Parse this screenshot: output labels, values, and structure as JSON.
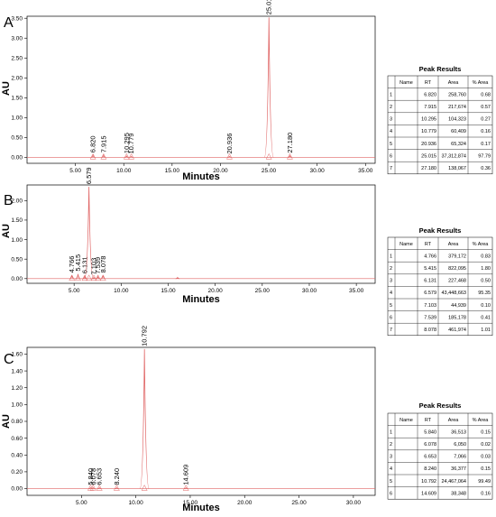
{
  "chart_data": [
    {
      "panel": "A",
      "type": "line",
      "xlabel": "Minutes",
      "ylabel": "AU",
      "xlim": [
        0,
        36
      ],
      "ylim": [
        -0.15,
        3.55
      ],
      "xticks": [
        5.0,
        10.0,
        15.0,
        20.0,
        25.0,
        30.0,
        35.0
      ],
      "xtick_labels": [
        "5.00",
        "10.00",
        "15.00",
        "20.00",
        "25.00",
        "30.00",
        "35.00"
      ],
      "yticks": [
        0.0,
        0.5,
        1.0,
        1.5,
        2.0,
        2.5,
        3.0,
        3.5
      ],
      "ytick_labels": [
        "0.00",
        "0.50",
        "1.00",
        "1.50",
        "2.00",
        "2.50",
        "3.00",
        "3.50"
      ],
      "peaks": [
        {
          "rt": 6.82,
          "label": "6.820",
          "height": 0.05
        },
        {
          "rt": 7.915,
          "label": "7.915",
          "height": 0.05
        },
        {
          "rt": 10.295,
          "label": "10.295",
          "height": 0.03
        },
        {
          "rt": 10.779,
          "label": "10.779",
          "height": 0.02
        },
        {
          "rt": 20.936,
          "label": "20.936",
          "height": 0.02
        },
        {
          "rt": 25.015,
          "label": "25.015",
          "height": 3.52
        },
        {
          "rt": 27.18,
          "label": "27.180",
          "height": 0.04
        }
      ],
      "table": {
        "title": "Peak Results",
        "columns": [
          "",
          "Name",
          "RT",
          "Area",
          "% Area"
        ],
        "rows": [
          [
            "1",
            "",
            "6.820",
            "258,760",
            "0.68"
          ],
          [
            "2",
            "",
            "7.915",
            "217,674",
            "0.57"
          ],
          [
            "3",
            "",
            "10.295",
            "104,323",
            "0.27"
          ],
          [
            "4",
            "",
            "10.779",
            "60,409",
            "0.16"
          ],
          [
            "5",
            "",
            "20.936",
            "65,324",
            "0.17"
          ],
          [
            "6",
            "",
            "25.015",
            "37,312,874",
            "97.79"
          ],
          [
            "7",
            "",
            "27.180",
            "138,067",
            "0.36"
          ]
        ]
      }
    },
    {
      "panel": "B",
      "type": "line",
      "xlabel": "Minutes",
      "ylabel": "AU",
      "xlim": [
        0,
        37
      ],
      "ylim": [
        -0.12,
        2.4
      ],
      "xticks": [
        5.0,
        10.0,
        15.0,
        20.0,
        25.0,
        30.0,
        35.0
      ],
      "xtick_labels": [
        "5.00",
        "10.00",
        "15.00",
        "20.00",
        "25.00",
        "30.00",
        "35.00"
      ],
      "yticks": [
        0.0,
        0.5,
        1.0,
        1.5,
        2.0
      ],
      "ytick_labels": [
        "0.00",
        "0.50",
        "1.00",
        "1.50",
        "2.00"
      ],
      "peaks": [
        {
          "rt": 4.766,
          "label": "4.766",
          "height": 0.08
        },
        {
          "rt": 5.415,
          "label": "5.415",
          "height": 0.12
        },
        {
          "rt": 6.131,
          "label": "6.131",
          "height": 0.06
        },
        {
          "rt": 6.579,
          "label": "6.579",
          "height": 2.35
        },
        {
          "rt": 7.103,
          "label": "7.103",
          "height": 0.03
        },
        {
          "rt": 7.539,
          "label": "7.539",
          "height": 0.05
        },
        {
          "rt": 8.078,
          "label": "8.078",
          "height": 0.08
        },
        {
          "rt": 16.0,
          "label": "",
          "height": 0.03
        }
      ],
      "table": {
        "title": "Peak Results",
        "columns": [
          "",
          "Name",
          "RT",
          "Area",
          "% Area"
        ],
        "rows": [
          [
            "1",
            "",
            "4.766",
            "379,172",
            "0.83"
          ],
          [
            "2",
            "",
            "5.415",
            "822,095",
            "1.80"
          ],
          [
            "3",
            "",
            "6.131",
            "227,468",
            "0.50"
          ],
          [
            "4",
            "",
            "6.579",
            "43,448,663",
            "95.35"
          ],
          [
            "5",
            "",
            "7.103",
            "44,939",
            "0.10"
          ],
          [
            "6",
            "",
            "7.539",
            "185,178",
            "0.41"
          ],
          [
            "7",
            "",
            "8.078",
            "461,974",
            "1.01"
          ]
        ]
      }
    },
    {
      "panel": "C",
      "type": "line",
      "xlabel": "Minutes",
      "ylabel": "AU",
      "xlim": [
        0,
        32
      ],
      "ylim": [
        -0.08,
        1.68
      ],
      "xticks": [
        5.0,
        10.0,
        15.0,
        20.0,
        25.0,
        30.0
      ],
      "xtick_labels": [
        "5.00",
        "10.00",
        "15.00",
        "20.00",
        "25.00",
        "30.00"
      ],
      "yticks": [
        0.0,
        0.2,
        0.4,
        0.6,
        0.8,
        1.0,
        1.2,
        1.4,
        1.6
      ],
      "ytick_labels": [
        "0.00",
        "0.20",
        "0.40",
        "0.60",
        "0.80",
        "1.00",
        "1.20",
        "1.40",
        "1.60"
      ],
      "peaks": [
        {
          "rt": 5.84,
          "label": "5.840",
          "height": 0.01
        },
        {
          "rt": 6.078,
          "label": "6.078",
          "height": 0.01
        },
        {
          "rt": 6.653,
          "label": "6.653",
          "height": 0.01
        },
        {
          "rt": 8.24,
          "label": "8.240",
          "height": 0.01
        },
        {
          "rt": 10.792,
          "label": "10.792",
          "height": 1.66
        },
        {
          "rt": 14.609,
          "label": "14.609",
          "height": 0.01
        }
      ],
      "table": {
        "title": "Peak Results",
        "columns": [
          "",
          "Name",
          "RT",
          "Area",
          "% Area"
        ],
        "rows": [
          [
            "1",
            "",
            "5.840",
            "36,513",
            "0.15"
          ],
          [
            "2",
            "",
            "6.078",
            "6,050",
            "0.02"
          ],
          [
            "3",
            "",
            "6.653",
            "7,066",
            "0.03"
          ],
          [
            "4",
            "",
            "8.240",
            "36,377",
            "0.15"
          ],
          [
            "5",
            "",
            "10.792",
            "24,467,064",
            "99.49"
          ],
          [
            "6",
            "",
            "14.609",
            "38,348",
            "0.16"
          ]
        ]
      }
    }
  ]
}
